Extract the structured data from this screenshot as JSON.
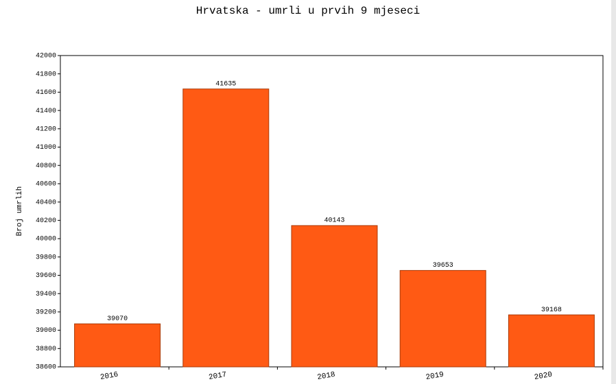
{
  "chart_data": {
    "type": "bar",
    "title": "Hrvatska - umrli u prvih 9 mjeseci",
    "ylabel": "Broj umrlih",
    "categories": [
      "2016",
      "2017",
      "2018",
      "2019",
      "2020"
    ],
    "values": [
      39070,
      41635,
      40143,
      39653,
      39168
    ],
    "color": "#ff5a14",
    "ylim": [
      38600,
      42000
    ],
    "yticks": [
      38600,
      38800,
      39000,
      39200,
      39400,
      39600,
      39800,
      40000,
      40200,
      40400,
      40600,
      40800,
      41000,
      41200,
      41400,
      41600,
      41800,
      42000
    ],
    "grid": false
  }
}
